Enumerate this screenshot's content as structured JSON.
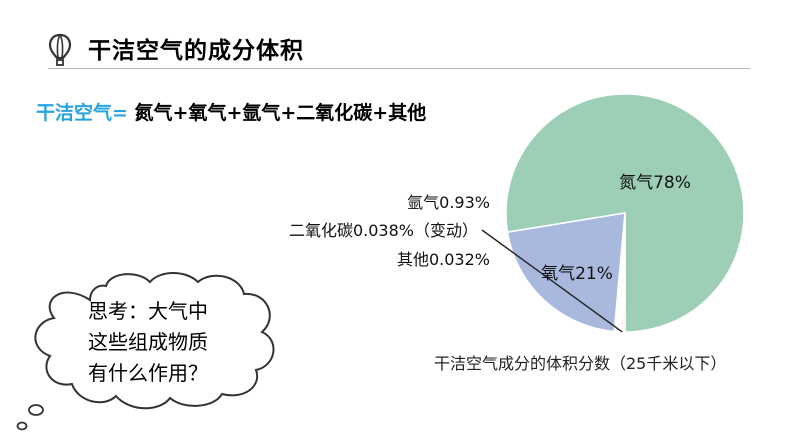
{
  "page": {
    "title": "干洁空气的成分体积",
    "formula_lhs": "干洁空气=",
    "formula_rhs": " 氮气+氧气+氩气+二氧化碳+其他"
  },
  "icons": {
    "title_icon": "hot-air-balloon-icon"
  },
  "thought_bubble": {
    "lines": [
      "思考：大气中",
      "这些组成物质",
      "有什么作用？"
    ]
  },
  "chart_data": {
    "type": "pie",
    "title": "",
    "caption": "干洁空气成分的体积分数（25千米以下）",
    "slices": [
      {
        "name": "氮气",
        "value": 78,
        "label": "氮气78%",
        "color": "#9ccfb5"
      },
      {
        "name": "氧气",
        "value": 21,
        "label": "氧气21%",
        "color": "#a9b9de"
      },
      {
        "name": "氩气",
        "value": 0.93,
        "label": "氩气0.93%",
        "color": "#ffffff"
      },
      {
        "name": "二氧化碳",
        "value": 0.038,
        "label": "二氧化碳0.038%（变动）",
        "color": "#c9a3cc"
      },
      {
        "name": "其他",
        "value": 0.032,
        "label": "其他0.032%",
        "color": "#d6d6d6"
      }
    ]
  }
}
